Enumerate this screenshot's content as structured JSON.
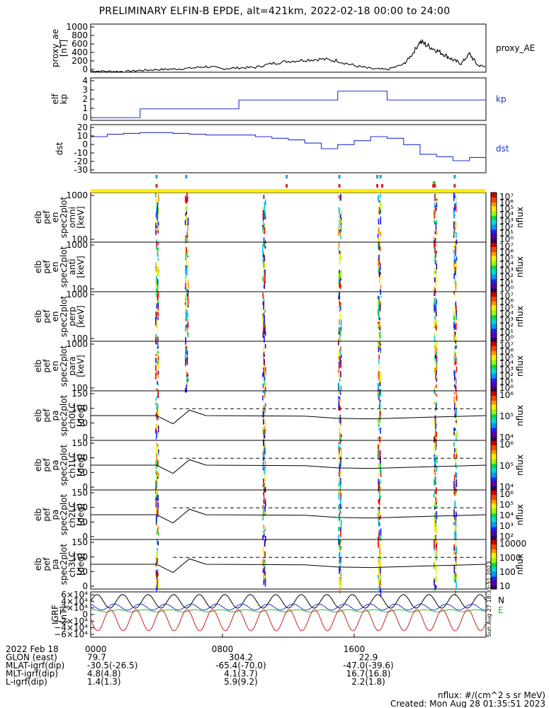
{
  "title": "PRELIMINARY ELFIN-B EPDE, alt=421km, 2022-02-18 00:00 to 24:00",
  "chart_data": [
    {
      "type": "line",
      "ylabel": [
        "proxy_ae",
        "[nT]"
      ],
      "yticks": [
        "1000",
        "800",
        "600",
        "400",
        "200",
        "0"
      ],
      "ylim": [
        0,
        1100
      ],
      "legend": "proxy_AE",
      "color": "#000000",
      "x_hours": [
        0,
        1,
        2,
        3,
        4,
        5,
        6,
        7,
        8,
        9,
        10,
        11,
        12,
        13,
        14,
        15,
        16,
        17,
        18,
        19,
        19.5,
        20,
        20.5,
        21,
        21.5,
        22,
        22.5,
        23,
        23.5,
        24
      ],
      "values": [
        30,
        20,
        15,
        40,
        60,
        70,
        90,
        130,
        80,
        100,
        110,
        200,
        250,
        280,
        300,
        260,
        150,
        80,
        60,
        180,
        400,
        700,
        600,
        500,
        400,
        280,
        200,
        420,
        160,
        120
      ]
    },
    {
      "type": "line",
      "step": true,
      "ylabel": [
        "elf",
        "kp"
      ],
      "yticks": [
        "4",
        "3",
        "2",
        "1",
        "0"
      ],
      "ylim": [
        -0.3,
        4.5
      ],
      "legend": "kp",
      "color": "#2233cc",
      "x_hours": [
        0,
        3,
        6,
        9,
        12,
        15,
        18,
        21,
        24
      ],
      "values": [
        0,
        1,
        1,
        2,
        2,
        3,
        2,
        2,
        2
      ]
    },
    {
      "type": "line",
      "step": true,
      "ylabel": [
        "dst"
      ],
      "yticks": [
        "20",
        "10",
        "0",
        "-10",
        "-20",
        "-30"
      ],
      "ylim": [
        -35,
        25
      ],
      "legend": "dst",
      "color": "#2233cc",
      "x_hours": [
        0,
        1,
        2,
        3,
        4,
        5,
        6,
        7,
        8,
        9,
        10,
        11,
        12,
        13,
        14,
        15,
        16,
        17,
        18,
        19,
        20,
        21,
        22,
        23,
        24
      ],
      "values": [
        10,
        13,
        14,
        15,
        15,
        14,
        13,
        12,
        12,
        12,
        10,
        8,
        6,
        2,
        -5,
        0,
        5,
        10,
        8,
        0,
        -12,
        -15,
        -20,
        -16,
        -12
      ]
    },
    {
      "type": "heatmap",
      "ylabel": [
        "elb",
        "pef",
        "en",
        "spec2plot",
        "omni",
        "[keV]"
      ],
      "yticks": [
        "1000",
        "100"
      ],
      "colorbar": [
        "10⁷",
        "10⁶",
        "10⁵",
        "10⁴",
        "10³",
        "10²",
        "10¹",
        "10⁰"
      ],
      "cblabel": "nflux"
    },
    {
      "type": "heatmap",
      "ylabel": [
        "elb",
        "pef",
        "en",
        "spec2plot",
        "anti",
        "[keV]"
      ],
      "yticks": [
        "1000",
        "100"
      ],
      "colorbar": [
        "10⁷",
        "10⁶",
        "10⁵",
        "10⁴",
        "10³",
        "10²",
        "10¹",
        "10⁰"
      ],
      "cblabel": "nflux"
    },
    {
      "type": "heatmap",
      "ylabel": [
        "elb",
        "pef",
        "en",
        "spec2plot",
        "perp",
        "[keV]"
      ],
      "yticks": [
        "1000",
        "100"
      ],
      "colorbar": [
        "10⁷",
        "10⁶",
        "10⁵",
        "10⁴",
        "10³",
        "10²",
        "10¹",
        "10⁰"
      ],
      "cblabel": "nflux"
    },
    {
      "type": "heatmap",
      "ylabel": [
        "elb",
        "pef",
        "en",
        "spec2plot",
        "para",
        "[keV]"
      ],
      "yticks": [
        "1000",
        "100"
      ],
      "colorbar": [
        "10⁷",
        "10⁶",
        "10⁵",
        "10⁴",
        "10³",
        "10²",
        "10¹",
        "10⁰"
      ],
      "cblabel": "nflux"
    },
    {
      "type": "heatmap",
      "ylabel": [
        "elb",
        "pef",
        "pa",
        "spec2plot",
        "ch0LC",
        "[deg]"
      ],
      "yticks": [
        "150",
        "100",
        "50",
        "0"
      ],
      "colorbar": [
        "10⁶",
        "10⁵",
        "10⁴"
      ],
      "cblabel": "nflux"
    },
    {
      "type": "heatmap",
      "ylabel": [
        "elb",
        "pef",
        "pa",
        "spec2plot",
        "ch1LC",
        "[deg]"
      ],
      "yticks": [
        "150",
        "100",
        "50",
        "0"
      ],
      "colorbar": [
        "10⁶",
        "10⁵",
        "10⁴"
      ],
      "cblabel": "nflux"
    },
    {
      "type": "heatmap",
      "ylabel": [
        "elb",
        "pef",
        "pa",
        "spec2plot",
        "ch2LC",
        "[deg]"
      ],
      "yticks": [
        "150",
        "100",
        "50",
        "0"
      ],
      "colorbar": [
        "10⁶",
        "10⁵",
        "10⁴",
        "10³",
        "10²"
      ],
      "cblabel": "nflux"
    },
    {
      "type": "heatmap",
      "ylabel": [
        "elb",
        "pef",
        "pa",
        "spec2plot",
        "ch3LC",
        "[deg]"
      ],
      "yticks": [
        "150",
        "100",
        "50",
        "0"
      ],
      "colorbar": [
        "10000",
        "1000",
        "100",
        "10"
      ],
      "cblabel": "nflux"
    },
    {
      "type": "line",
      "ylabel": [
        "IGRF",
        "[nT]"
      ],
      "yticks": [
        "6×10⁴",
        "4×10⁴",
        "2×10⁴",
        "0",
        "−2×10⁴",
        "−4×10⁴",
        "−6×10⁴"
      ],
      "ylim": [
        -60000,
        60000
      ],
      "legend": [
        "N",
        "E"
      ],
      "series": [
        {
          "name": "N",
          "color": "#000000"
        },
        {
          "name": "E",
          "color": "#22bb22"
        },
        {
          "color": "#2233cc"
        },
        {
          "color": "#cc2222"
        }
      ]
    }
  ],
  "xticks": [
    "0000",
    "0800",
    "1600"
  ],
  "footer": {
    "rows": [
      [
        "2022 Feb 18",
        "0000",
        "",
        ""
      ],
      [
        "GLON (east)",
        "79.7",
        "304.2",
        "22.9"
      ],
      [
        "MLAT-igrf(dip)",
        "-30.5(-26.5)",
        "-65.4(-70.0)",
        "-47.0(-39.6)"
      ],
      [
        "MLT-igrf(dip)",
        "4.8(4.8)",
        "4.1(3.7)",
        "16.7(16.8)"
      ],
      [
        "L-igrf(dip)",
        "1.4(1.3)",
        "5.9(9.2)",
        "2.2(1.8)"
      ]
    ],
    "units": "nflux: #/(cm^2 s sr MeV)",
    "created": "Created: Mon Aug 28 01:35:51 2023",
    "side_note": "Sun Aug 27 18:35:51 2023"
  },
  "colors": {
    "axis": "#000000",
    "traj": "#ffee00",
    "line": "#2233cc"
  }
}
